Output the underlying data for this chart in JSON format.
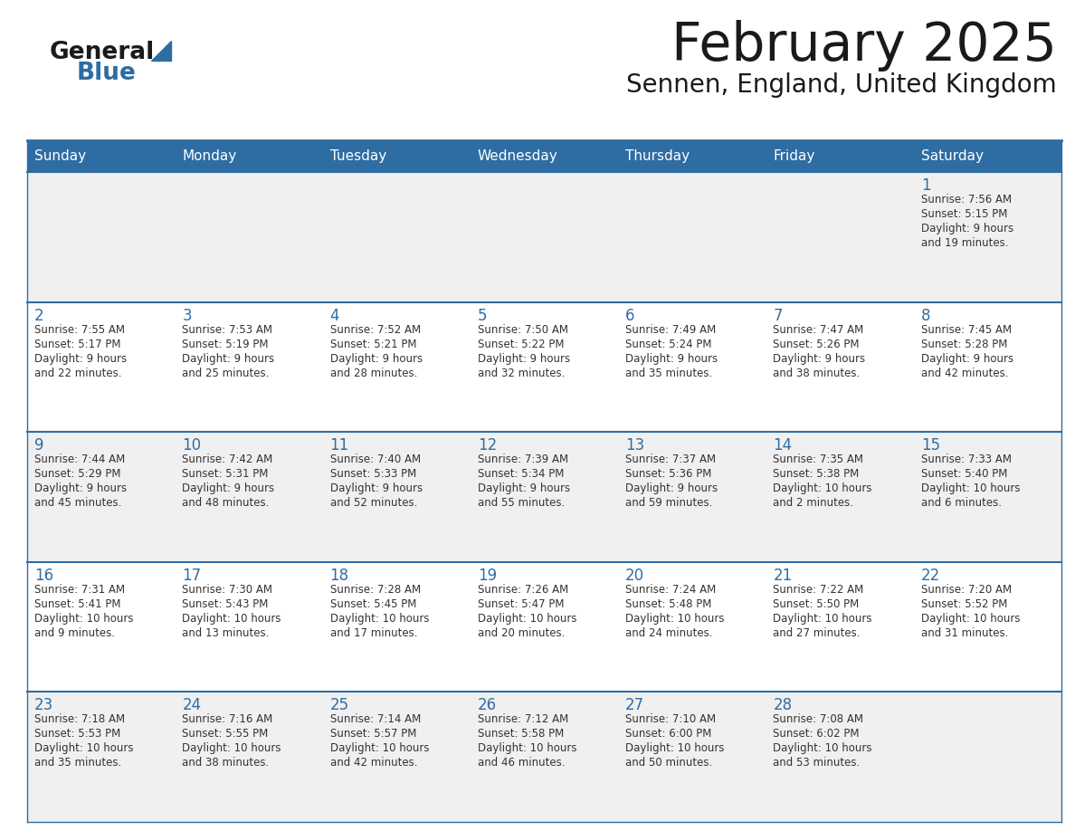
{
  "title": "February 2025",
  "subtitle": "Sennen, England, United Kingdom",
  "header_color": "#2E6DA4",
  "header_text_color": "#FFFFFF",
  "row0_bg": "#F0F0F0",
  "row1_bg": "#FFFFFF",
  "row2_bg": "#F0F0F0",
  "row3_bg": "#FFFFFF",
  "row4_bg": "#F0F0F0",
  "border_color": "#2E6DA4",
  "text_color": "#333333",
  "day_number_color": "#2E6DA4",
  "days_of_week": [
    "Sunday",
    "Monday",
    "Tuesday",
    "Wednesday",
    "Thursday",
    "Friday",
    "Saturday"
  ],
  "logo_text1_color": "#1a1a1a",
  "logo_text2_color": "#2E6DA4",
  "logo_tri_color": "#2E6DA4",
  "title_color": "#1a1a1a",
  "calendar": [
    [
      null,
      null,
      null,
      null,
      null,
      null,
      {
        "day": "1",
        "sunrise": "7:56 AM",
        "sunset": "5:15 PM",
        "daylight1": "Daylight: 9 hours",
        "daylight2": "and 19 minutes."
      }
    ],
    [
      {
        "day": "2",
        "sunrise": "7:55 AM",
        "sunset": "5:17 PM",
        "daylight1": "Daylight: 9 hours",
        "daylight2": "and 22 minutes."
      },
      {
        "day": "3",
        "sunrise": "7:53 AM",
        "sunset": "5:19 PM",
        "daylight1": "Daylight: 9 hours",
        "daylight2": "and 25 minutes."
      },
      {
        "day": "4",
        "sunrise": "7:52 AM",
        "sunset": "5:21 PM",
        "daylight1": "Daylight: 9 hours",
        "daylight2": "and 28 minutes."
      },
      {
        "day": "5",
        "sunrise": "7:50 AM",
        "sunset": "5:22 PM",
        "daylight1": "Daylight: 9 hours",
        "daylight2": "and 32 minutes."
      },
      {
        "day": "6",
        "sunrise": "7:49 AM",
        "sunset": "5:24 PM",
        "daylight1": "Daylight: 9 hours",
        "daylight2": "and 35 minutes."
      },
      {
        "day": "7",
        "sunrise": "7:47 AM",
        "sunset": "5:26 PM",
        "daylight1": "Daylight: 9 hours",
        "daylight2": "and 38 minutes."
      },
      {
        "day": "8",
        "sunrise": "7:45 AM",
        "sunset": "5:28 PM",
        "daylight1": "Daylight: 9 hours",
        "daylight2": "and 42 minutes."
      }
    ],
    [
      {
        "day": "9",
        "sunrise": "7:44 AM",
        "sunset": "5:29 PM",
        "daylight1": "Daylight: 9 hours",
        "daylight2": "and 45 minutes."
      },
      {
        "day": "10",
        "sunrise": "7:42 AM",
        "sunset": "5:31 PM",
        "daylight1": "Daylight: 9 hours",
        "daylight2": "and 48 minutes."
      },
      {
        "day": "11",
        "sunrise": "7:40 AM",
        "sunset": "5:33 PM",
        "daylight1": "Daylight: 9 hours",
        "daylight2": "and 52 minutes."
      },
      {
        "day": "12",
        "sunrise": "7:39 AM",
        "sunset": "5:34 PM",
        "daylight1": "Daylight: 9 hours",
        "daylight2": "and 55 minutes."
      },
      {
        "day": "13",
        "sunrise": "7:37 AM",
        "sunset": "5:36 PM",
        "daylight1": "Daylight: 9 hours",
        "daylight2": "and 59 minutes."
      },
      {
        "day": "14",
        "sunrise": "7:35 AM",
        "sunset": "5:38 PM",
        "daylight1": "Daylight: 10 hours",
        "daylight2": "and 2 minutes."
      },
      {
        "day": "15",
        "sunrise": "7:33 AM",
        "sunset": "5:40 PM",
        "daylight1": "Daylight: 10 hours",
        "daylight2": "and 6 minutes."
      }
    ],
    [
      {
        "day": "16",
        "sunrise": "7:31 AM",
        "sunset": "5:41 PM",
        "daylight1": "Daylight: 10 hours",
        "daylight2": "and 9 minutes."
      },
      {
        "day": "17",
        "sunrise": "7:30 AM",
        "sunset": "5:43 PM",
        "daylight1": "Daylight: 10 hours",
        "daylight2": "and 13 minutes."
      },
      {
        "day": "18",
        "sunrise": "7:28 AM",
        "sunset": "5:45 PM",
        "daylight1": "Daylight: 10 hours",
        "daylight2": "and 17 minutes."
      },
      {
        "day": "19",
        "sunrise": "7:26 AM",
        "sunset": "5:47 PM",
        "daylight1": "Daylight: 10 hours",
        "daylight2": "and 20 minutes."
      },
      {
        "day": "20",
        "sunrise": "7:24 AM",
        "sunset": "5:48 PM",
        "daylight1": "Daylight: 10 hours",
        "daylight2": "and 24 minutes."
      },
      {
        "day": "21",
        "sunrise": "7:22 AM",
        "sunset": "5:50 PM",
        "daylight1": "Daylight: 10 hours",
        "daylight2": "and 27 minutes."
      },
      {
        "day": "22",
        "sunrise": "7:20 AM",
        "sunset": "5:52 PM",
        "daylight1": "Daylight: 10 hours",
        "daylight2": "and 31 minutes."
      }
    ],
    [
      {
        "day": "23",
        "sunrise": "7:18 AM",
        "sunset": "5:53 PM",
        "daylight1": "Daylight: 10 hours",
        "daylight2": "and 35 minutes."
      },
      {
        "day": "24",
        "sunrise": "7:16 AM",
        "sunset": "5:55 PM",
        "daylight1": "Daylight: 10 hours",
        "daylight2": "and 38 minutes."
      },
      {
        "day": "25",
        "sunrise": "7:14 AM",
        "sunset": "5:57 PM",
        "daylight1": "Daylight: 10 hours",
        "daylight2": "and 42 minutes."
      },
      {
        "day": "26",
        "sunrise": "7:12 AM",
        "sunset": "5:58 PM",
        "daylight1": "Daylight: 10 hours",
        "daylight2": "and 46 minutes."
      },
      {
        "day": "27",
        "sunrise": "7:10 AM",
        "sunset": "6:00 PM",
        "daylight1": "Daylight: 10 hours",
        "daylight2": "and 50 minutes."
      },
      {
        "day": "28",
        "sunrise": "7:08 AM",
        "sunset": "6:02 PM",
        "daylight1": "Daylight: 10 hours",
        "daylight2": "and 53 minutes."
      },
      null
    ]
  ],
  "row_bgs": [
    "#F0F0F0",
    "#FFFFFF",
    "#F0F0F0",
    "#FFFFFF",
    "#F0F0F0"
  ]
}
